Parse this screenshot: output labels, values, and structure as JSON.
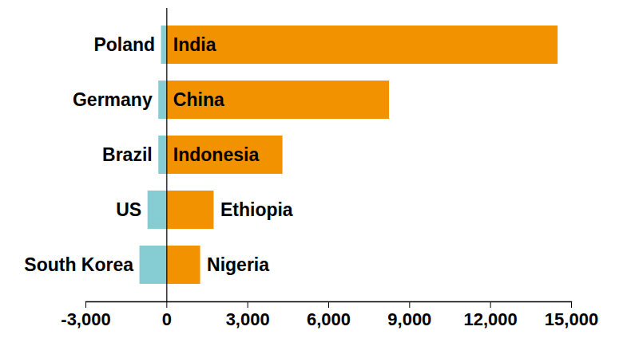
{
  "chart_data": {
    "type": "bar",
    "orientation": "horizontal",
    "series": [
      {
        "categories": [
          "Poland",
          "Germany",
          "Brazil",
          "US",
          "South Korea"
        ],
        "color": "#86cdd3",
        "values": [
          -200,
          -300,
          -300,
          -700,
          -1000
        ]
      },
      {
        "categories": [
          "India",
          "China",
          "Indonesia",
          "Ethiopia",
          "Nigeria"
        ],
        "color": "#f39200",
        "values": [
          14500,
          8250,
          4300,
          1750,
          1250
        ]
      }
    ],
    "xlim": [
      -3000,
      15000
    ],
    "xticks": [
      {
        "value": -3000,
        "label": "-3,000"
      },
      0,
      {
        "value": 3000,
        "label": "3,000"
      },
      {
        "value": 6000,
        "label": "6,000"
      },
      {
        "value": 9000,
        "label": "9,000"
      },
      {
        "value": 12000,
        "label": "12,000"
      },
      {
        "value": 15000,
        "label": "15,000"
      }
    ],
    "grid": false
  }
}
